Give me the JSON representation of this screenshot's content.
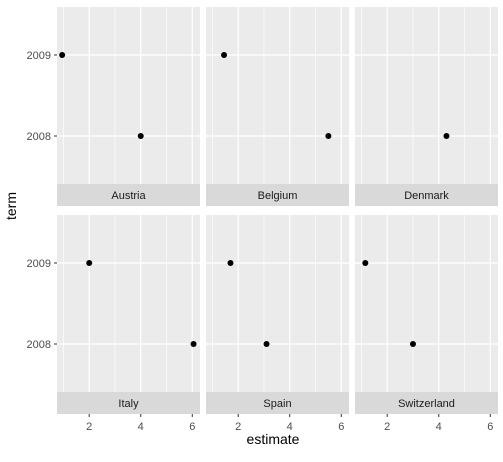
{
  "chart_data": {
    "type": "scatter",
    "title": "",
    "xlabel": "estimate",
    "ylabel": "term",
    "xlim": [
      0.75,
      6.3
    ],
    "x_ticks": [
      2,
      4,
      6
    ],
    "y_categories": [
      "2009",
      "2008"
    ],
    "grid": true,
    "facet_layout": "2x3, strip labels at bottom",
    "colors": {
      "panel_background": "#ebebeb",
      "grid": "#ffffff",
      "strip_background": "#d9d9d9",
      "point": "#000000",
      "tick_text": "#4d4d4d",
      "axis_title": "#000000"
    },
    "panels": [
      {
        "label": "Austria",
        "points": [
          {
            "term": "2009",
            "estimate": 0.95
          },
          {
            "term": "2008",
            "estimate": 4.0
          }
        ]
      },
      {
        "label": "Belgium",
        "points": [
          {
            "term": "2009",
            "estimate": 1.45
          },
          {
            "term": "2008",
            "estimate": 5.5
          }
        ]
      },
      {
        "label": "Denmark",
        "points": [
          {
            "term": "2008",
            "estimate": 4.3
          }
        ]
      },
      {
        "label": "Italy",
        "points": [
          {
            "term": "2009",
            "estimate": 2.0
          },
          {
            "term": "2008",
            "estimate": 6.05
          }
        ]
      },
      {
        "label": "Spain",
        "points": [
          {
            "term": "2009",
            "estimate": 1.7
          },
          {
            "term": "2008",
            "estimate": 3.1
          }
        ]
      },
      {
        "label": "Switzerland",
        "points": [
          {
            "term": "2009",
            "estimate": 1.15
          },
          {
            "term": "2008",
            "estimate": 3.0
          }
        ]
      }
    ]
  }
}
